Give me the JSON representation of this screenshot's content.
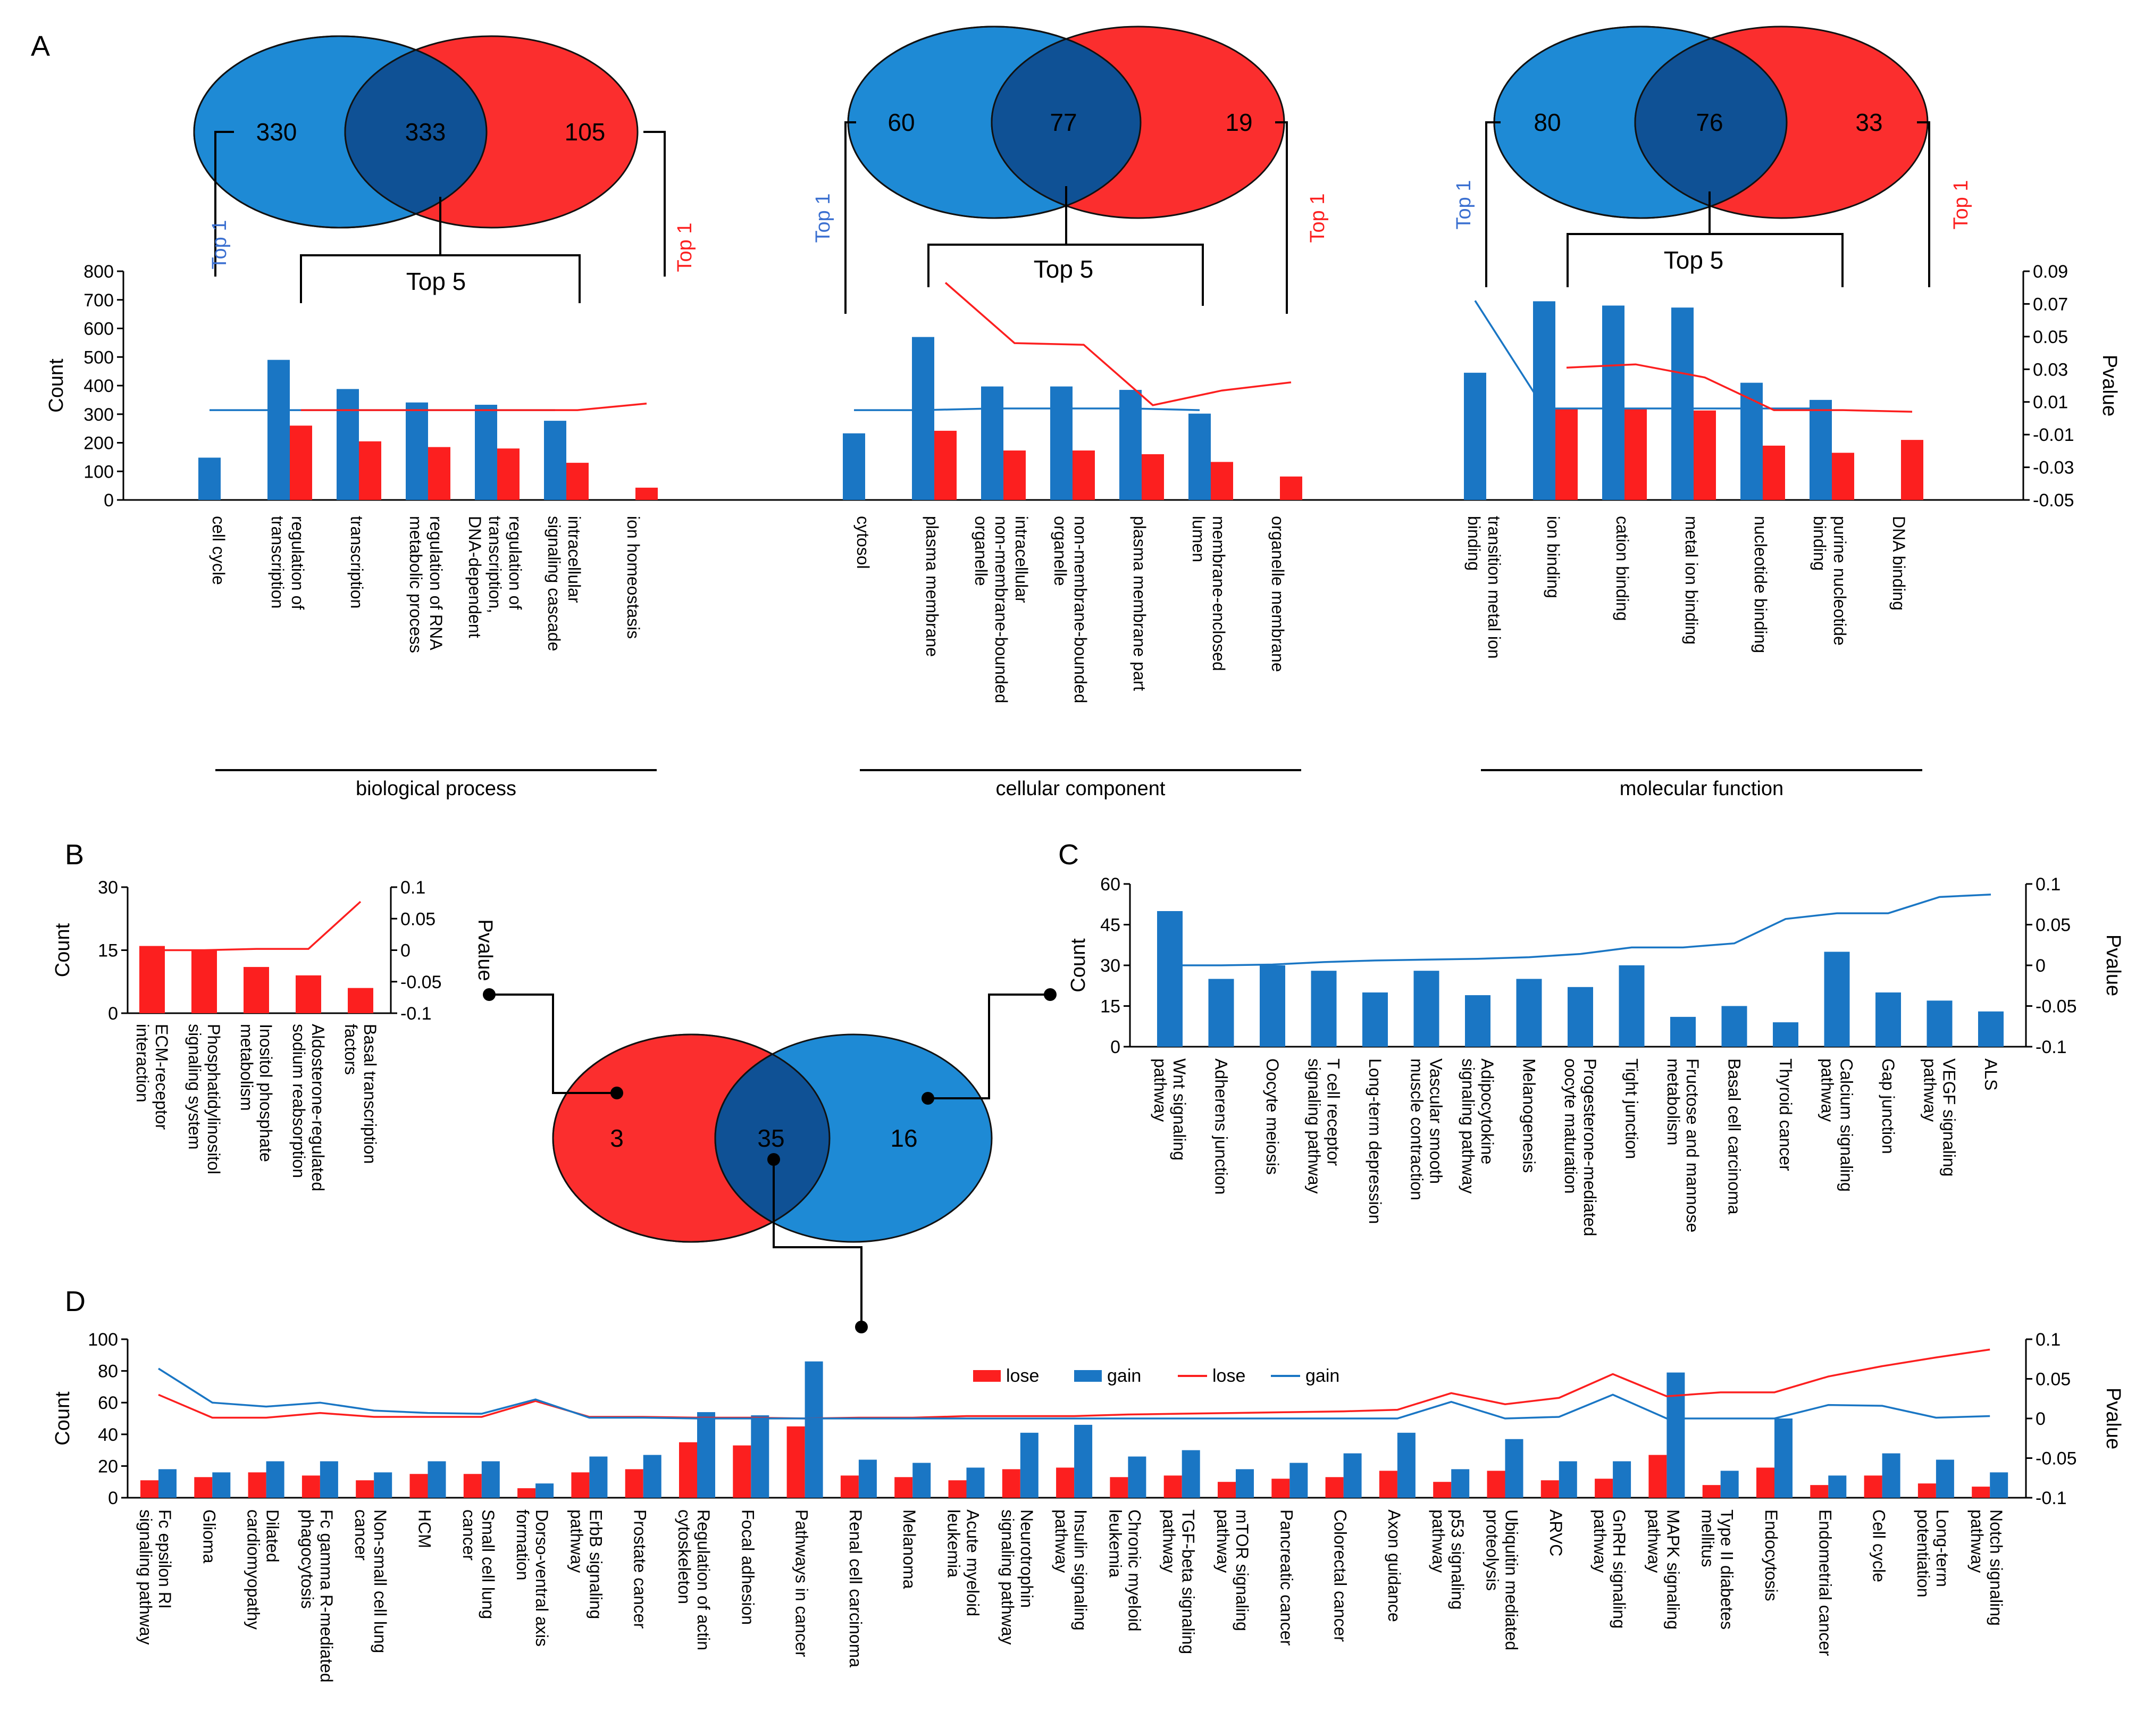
{
  "colors": {
    "blue": "#1a76c4",
    "red": "#fc1f1f",
    "overlap": "#0f5195",
    "blueEllipse": "#1e8ad5",
    "redEllipse": "#fb2e2e"
  },
  "panels": {
    "a": "A",
    "b": "B",
    "c": "C",
    "d": "D"
  },
  "venn_a": [
    {
      "left": "330",
      "middle": "333",
      "right": "105"
    },
    {
      "left": "60",
      "middle": "77",
      "right": "19"
    },
    {
      "left": "80",
      "middle": "76",
      "right": "33"
    }
  ],
  "venn_center": {
    "left": "3",
    "middle": "35",
    "right": "16"
  },
  "top1": "Top 1",
  "top5": "Top 5",
  "axis_labels": {
    "count": "Count",
    "pvalue": "Pvalue"
  },
  "chart_data": [
    {
      "id": "A",
      "type": "bar",
      "ylabel": "Count",
      "ylabel_right": "Pvalue",
      "ylim": [
        0,
        800
      ],
      "yticks": [
        "0",
        "100",
        "200",
        "300",
        "400",
        "500",
        "600",
        "700",
        "800"
      ],
      "ylim_right": [
        -0.05,
        0.09
      ],
      "yticks_right": [
        "-0.05",
        "-0.03",
        "-0.01",
        "0.01",
        "0.03",
        "0.05",
        "0.07",
        "0.09"
      ],
      "groups": [
        {
          "name": "biological process",
          "categories": [
            "cell cycle",
            "regulation of transcription",
            "transcription",
            "regulation of RNA metabolic process",
            "regulation of transcription, DNA-dependent",
            "intracellular signaling cascade",
            "ion homeostasis"
          ],
          "blue_bars": [
            148,
            490,
            388,
            341,
            333,
            277,
            null
          ],
          "red_bars": [
            null,
            260,
            205,
            185,
            180,
            130,
            43
          ],
          "blue_line": [
            0.005,
            0.005,
            0.005,
            0.005,
            0.005,
            0.005,
            null
          ],
          "red_line": [
            null,
            0.005,
            0.005,
            0.005,
            0.005,
            0.005,
            0.009
          ]
        },
        {
          "name": "cellular component",
          "categories": [
            "cytosol",
            "plasma membrane",
            "intracellular non-membrane-bounded organelle",
            "non-membrane-bounded organelle",
            "plasma membrane part",
            "membrane-enclosed lumen",
            "organelle membrane"
          ],
          "blue_bars": [
            233,
            570,
            397,
            397,
            385,
            302,
            null
          ],
          "red_bars": [
            null,
            242,
            173,
            173,
            160,
            133,
            82
          ],
          "blue_line": [
            0.005,
            0.005,
            0.006,
            0.006,
            0.006,
            0.005,
            null
          ],
          "red_line": [
            null,
            0.083,
            0.046,
            0.045,
            0.008,
            0.017,
            0.022
          ]
        },
        {
          "name": "molecular function",
          "categories": [
            "transition metal ion binding",
            "ion binding",
            "cation binding",
            "metal ion binding",
            "nucleotide binding",
            "purine nucleotide binding",
            "DNA binding"
          ],
          "blue_bars": [
            445,
            695,
            680,
            673,
            410,
            350,
            null
          ],
          "red_bars": [
            null,
            320,
            318,
            313,
            190,
            165,
            210
          ],
          "blue_line": [
            0.072,
            0.006,
            0.006,
            0.006,
            0.006,
            0.006,
            null
          ],
          "red_line": [
            null,
            0.031,
            0.033,
            0.025,
            0.005,
            0.005,
            0.004
          ]
        }
      ]
    },
    {
      "id": "B",
      "type": "bar",
      "ylabel": "Count",
      "ylabel_right": "Pvalue",
      "ylim": [
        0,
        30
      ],
      "yticks": [
        "0",
        "15",
        "30"
      ],
      "ylim_right": [
        -0.1,
        0.1
      ],
      "yticks_right": [
        "-0.1",
        "-0.05",
        "0",
        "0.05",
        "0.1"
      ],
      "categories": [
        "ECM-receptor interaction",
        "Phosphatidylinositol signaling system",
        "Inositol phosphate metabolism",
        "Aldosterone-regulated sodium reabsorption",
        "Basal transcription factors"
      ],
      "series": [
        {
          "name": "bars",
          "values": [
            16,
            15,
            11,
            9,
            6
          ]
        },
        {
          "name": "line",
          "values": [
            0.0,
            0.0,
            0.002,
            0.002,
            0.077
          ]
        }
      ]
    },
    {
      "id": "C",
      "type": "bar",
      "ylabel": "Count",
      "ylabel_right": "Pvalue",
      "ylim": [
        0,
        60
      ],
      "yticks": [
        "0",
        "15",
        "30",
        "45",
        "60"
      ],
      "ylim_right": [
        -0.1,
        0.1
      ],
      "yticks_right": [
        "-0.1",
        "-0.05",
        "0",
        "0.05",
        "0.1"
      ],
      "categories": [
        "Wnt signaling pathway",
        "Adherens junction",
        "Oocyte meiosis",
        "T cell receptor signaling pathway",
        "Long-term depression",
        "Vascular smooth muscle contraction",
        "Adipocytokine signaling pathway",
        "Melanogenesis",
        "Progesterone-mediated oocyte maturation",
        "Tight junction",
        "Fructose and mannose metabolism",
        "Basal cell carcinoma",
        "Thyroid cancer",
        "Calcium signaling pathway",
        "Gap junction",
        "VEGF signaling pathway",
        "ALS"
      ],
      "series": [
        {
          "name": "bars",
          "values": [
            50,
            25,
            30,
            28,
            20,
            28,
            19,
            25,
            22,
            30,
            11,
            15,
            9,
            35,
            20,
            17,
            13
          ]
        },
        {
          "name": "line",
          "values": [
            0.0,
            0.0,
            0.001,
            0.004,
            0.006,
            0.007,
            0.008,
            0.01,
            0.014,
            0.022,
            0.022,
            0.027,
            0.057,
            0.064,
            0.064,
            0.084,
            0.087
          ]
        }
      ]
    },
    {
      "id": "D",
      "type": "bar",
      "ylabel": "Count",
      "ylabel_right": "Pvalue",
      "ylim": [
        0,
        100
      ],
      "yticks": [
        "0",
        "20",
        "40",
        "60",
        "80",
        "100"
      ],
      "ylim_right": [
        -0.1,
        0.1
      ],
      "yticks_right": [
        "-0.1",
        "-0.05",
        "0",
        "0.05",
        "0.1"
      ],
      "legend": {
        "position": "top-center",
        "entries": [
          "lose",
          "gain",
          "lose",
          "gain"
        ]
      },
      "categories": [
        "Fc epsilon RI signaling pathway",
        "Glioma",
        "Dilated cardiomyopathy",
        "Fc gamma R-mediated phagocytosis",
        "Non-small cell lung cancer",
        "HCM",
        "Small cell lung cancer",
        "Dorso-ventral axis formation",
        "ErbB signaling pathway",
        "Prostate cancer",
        "Regulation of actin cytoskeleton",
        "Focal adhesion",
        "Pathways in cancer",
        "Renal cell carcinoma",
        "Melanoma",
        "Acute myeloid leukemia",
        "Neurotrophin signaling pathway",
        "Insulin signaling pathway",
        "Chronic myeloid leukemia",
        "TGF-beta signaling pathway",
        "mTOR signaling pathway",
        "Pancreatic cancer",
        "Colorectal cancer",
        "Axon guidance",
        "p53 signaling pathway",
        "Ubiquitin mediated proteolysis",
        "ARVC",
        "GnRH signaling pathway",
        "MAPK signaling pathway",
        "Type II diabetes mellitus",
        "Endocytosis",
        "Endometrial cancer",
        "Cell cycle",
        "Long-term potentiation",
        "Notch signaling pathway"
      ],
      "series": [
        {
          "name": "lose",
          "kind": "bar",
          "values": [
            11,
            13,
            16,
            14,
            11,
            15,
            15,
            6,
            16,
            18,
            35,
            33,
            45,
            14,
            13,
            11,
            18,
            19,
            13,
            14,
            10,
            12,
            13,
            17,
            10,
            17,
            11,
            12,
            27,
            8,
            19,
            8,
            14,
            9,
            7
          ]
        },
        {
          "name": "gain",
          "kind": "bar",
          "values": [
            18,
            16,
            23,
            23,
            16,
            23,
            23,
            9,
            26,
            27,
            54,
            52,
            86,
            24,
            22,
            19,
            41,
            46,
            26,
            30,
            18,
            22,
            28,
            41,
            18,
            37,
            23,
            23,
            79,
            17,
            50,
            14,
            28,
            24,
            16
          ]
        },
        {
          "name": "lose",
          "kind": "line",
          "values": [
            0.03,
            0.001,
            0.001,
            0.007,
            0.002,
            0.002,
            0.002,
            0.022,
            0.002,
            0.002,
            0.001,
            0.001,
            0.0,
            0.001,
            0.001,
            0.003,
            0.003,
            0.003,
            0.005,
            0.006,
            0.007,
            0.008,
            0.009,
            0.011,
            0.032,
            0.018,
            0.026,
            0.056,
            0.028,
            0.033,
            0.033,
            0.053,
            0.066,
            0.077,
            0.087
          ]
        },
        {
          "name": "gain",
          "kind": "line",
          "values": [
            0.063,
            0.02,
            0.015,
            0.02,
            0.01,
            0.007,
            0.006,
            0.024,
            0.001,
            0.001,
            0.0,
            0.0,
            0.0,
            0.0,
            0.0,
            0.0,
            0.0,
            0.0,
            0.0,
            0.0,
            0.0,
            0.0,
            0.0,
            0.0,
            0.021,
            0.0,
            0.002,
            0.03,
            0.0,
            0.0,
            0.0,
            0.017,
            0.016,
            0.001,
            0.003
          ]
        }
      ]
    }
  ]
}
